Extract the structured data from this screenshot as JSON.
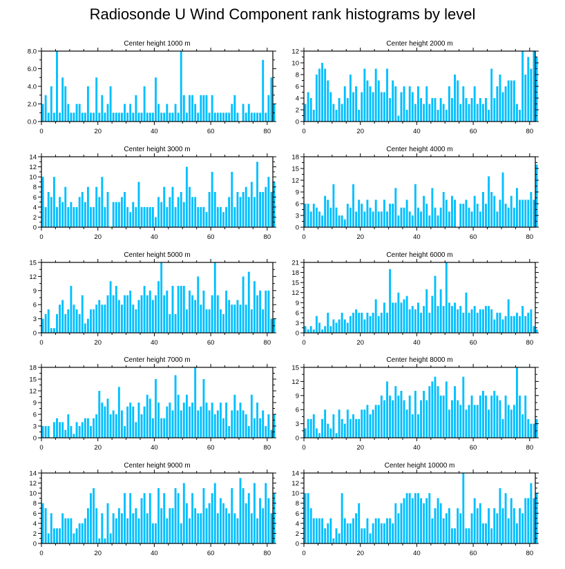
{
  "title": "Radiosonde U Wind Component rank histograms by level",
  "bar_color": "#00BFFF",
  "chart_data": [
    {
      "type": "bar",
      "title": "Center height 1000 m",
      "xlim": [
        0,
        82
      ],
      "ylim": [
        0,
        8
      ],
      "yticks": [
        0,
        2,
        4,
        6,
        8
      ],
      "ytick_labels": [
        "0.0",
        "2.0",
        "4.0",
        "6.0",
        "8.0"
      ],
      "xticks": [
        0,
        20,
        40,
        60,
        80
      ],
      "values": [
        2,
        3,
        1,
        4,
        1,
        8,
        1,
        5,
        4,
        2,
        1,
        1,
        2,
        2,
        1,
        1,
        4,
        1,
        1,
        5,
        1,
        3,
        1,
        2,
        4,
        1,
        1,
        1,
        1,
        2,
        1,
        2,
        1,
        3,
        1,
        1,
        4,
        1,
        1,
        1,
        5,
        2,
        1,
        1,
        2,
        1,
        1,
        2,
        1,
        8,
        3,
        1,
        3,
        3,
        2,
        1,
        3,
        3,
        3,
        1,
        3,
        1,
        1,
        1,
        1,
        1,
        1,
        2,
        3,
        1,
        0,
        2,
        1,
        2,
        1,
        1,
        1,
        1,
        7,
        1,
        3,
        5,
        2
      ]
    },
    {
      "type": "bar",
      "title": "Center height 2000 m",
      "xlim": [
        0,
        82
      ],
      "ylim": [
        0,
        12
      ],
      "yticks": [
        0,
        2,
        4,
        6,
        8,
        10,
        12
      ],
      "ytick_labels": [
        "0",
        "2",
        "4",
        "6",
        "8",
        "10",
        "12"
      ],
      "xticks": [
        0,
        20,
        40,
        60,
        80
      ],
      "values": [
        3,
        5,
        4,
        2,
        8,
        9,
        10,
        9,
        7,
        5,
        3,
        2,
        4,
        3,
        6,
        4,
        8,
        5,
        6,
        2,
        5,
        9,
        7,
        6,
        5,
        9,
        7,
        5,
        5,
        9,
        4,
        7,
        6,
        1,
        5,
        6,
        2,
        6,
        5,
        3,
        6,
        4,
        3,
        6,
        3,
        4,
        4,
        2,
        4,
        3,
        2,
        6,
        4,
        8,
        7,
        3,
        6,
        4,
        3,
        4,
        6,
        3,
        4,
        3,
        4,
        2,
        9,
        4,
        6,
        8,
        5,
        6,
        7,
        7,
        7,
        3,
        2,
        12,
        8,
        11,
        9,
        12,
        11
      ]
    },
    {
      "type": "bar",
      "title": "Center height 3000 m",
      "xlim": [
        0,
        82
      ],
      "ylim": [
        0,
        14
      ],
      "yticks": [
        0,
        2,
        4,
        6,
        8,
        10,
        12,
        14
      ],
      "ytick_labels": [
        "0",
        "2",
        "4",
        "6",
        "8",
        "10",
        "12",
        "14"
      ],
      "xticks": [
        0,
        20,
        40,
        60,
        80
      ],
      "values": [
        10,
        4,
        7,
        6,
        10,
        4,
        6,
        5,
        8,
        4,
        5,
        4,
        4,
        6,
        7,
        5,
        8,
        4,
        4,
        8,
        6,
        10,
        4,
        7,
        0,
        5,
        5,
        5,
        6,
        7,
        4,
        3,
        5,
        4,
        9,
        4,
        4,
        4,
        4,
        4,
        2,
        6,
        5,
        8,
        4,
        6,
        8,
        4,
        6,
        7,
        5,
        12,
        8,
        6,
        6,
        4,
        4,
        4,
        3,
        7,
        11,
        7,
        4,
        4,
        3,
        4,
        6,
        11,
        4,
        7,
        6,
        7,
        8,
        6,
        9,
        6,
        13,
        7,
        7,
        8,
        10,
        7,
        9
      ]
    },
    {
      "type": "bar",
      "title": "Center height 4000 m",
      "xlim": [
        0,
        82
      ],
      "ylim": [
        0,
        18
      ],
      "yticks": [
        0,
        3,
        6,
        9,
        12,
        15,
        18
      ],
      "ytick_labels": [
        "0",
        "3",
        "6",
        "9",
        "12",
        "15",
        "18"
      ],
      "xticks": [
        0,
        20,
        40,
        60,
        80
      ],
      "values": [
        6,
        6,
        4,
        6,
        5,
        4,
        3,
        8,
        7,
        5,
        11,
        5,
        3,
        3,
        2,
        6,
        5,
        11,
        4,
        7,
        6,
        4,
        7,
        5,
        4,
        7,
        4,
        4,
        7,
        4,
        6,
        6,
        10,
        3,
        5,
        5,
        7,
        4,
        3,
        11,
        5,
        4,
        8,
        6,
        3,
        10,
        5,
        3,
        5,
        9,
        7,
        4,
        8,
        7,
        0,
        6,
        6,
        7,
        5,
        4,
        8,
        6,
        4,
        9,
        6,
        13,
        9,
        8,
        4,
        7,
        14,
        6,
        5,
        8,
        5,
        10,
        7,
        7,
        7,
        7,
        9,
        7,
        16
      ]
    },
    {
      "type": "bar",
      "title": "Center height 5000 m",
      "xlim": [
        0,
        82
      ],
      "ylim": [
        0,
        15
      ],
      "yticks": [
        0,
        3,
        6,
        9,
        12,
        15
      ],
      "ytick_labels": [
        "0",
        "3",
        "6",
        "9",
        "12",
        "15"
      ],
      "xticks": [
        0,
        20,
        40,
        60,
        80
      ],
      "values": [
        3,
        4,
        5,
        1,
        1,
        4,
        6,
        7,
        4,
        5,
        10,
        6,
        5,
        4,
        8,
        2,
        3,
        5,
        5,
        6,
        7,
        6,
        6,
        8,
        11,
        8,
        10,
        7,
        6,
        8,
        8,
        9,
        6,
        5,
        7,
        8,
        10,
        8,
        9,
        7,
        8,
        11,
        15,
        8,
        9,
        4,
        10,
        4,
        10,
        10,
        10,
        5,
        9,
        8,
        7,
        12,
        6,
        9,
        5,
        5,
        8,
        15,
        8,
        5,
        4,
        9,
        7,
        6,
        6,
        7,
        6,
        12,
        6,
        13,
        5,
        11,
        8,
        9,
        5,
        9,
        9,
        3,
        3
      ]
    },
    {
      "type": "bar",
      "title": "Center height 6000 m",
      "xlim": [
        0,
        82
      ],
      "ylim": [
        0,
        21
      ],
      "yticks": [
        0,
        3,
        6,
        9,
        12,
        15,
        18,
        21
      ],
      "ytick_labels": [
        "0",
        "3",
        "6",
        "9",
        "12",
        "15",
        "18",
        "21"
      ],
      "xticks": [
        0,
        20,
        40,
        60,
        80
      ],
      "values": [
        2,
        1,
        2,
        1,
        5,
        3,
        1,
        2,
        6,
        2,
        4,
        3,
        4,
        6,
        4,
        3,
        5,
        6,
        7,
        6,
        6,
        4,
        6,
        5,
        6,
        10,
        5,
        6,
        9,
        6,
        19,
        9,
        9,
        12,
        9,
        10,
        11,
        7,
        8,
        7,
        9,
        6,
        8,
        13,
        6,
        11,
        17,
        8,
        13,
        8,
        21,
        9,
        8,
        9,
        7,
        8,
        6,
        12,
        6,
        7,
        8,
        6,
        7,
        7,
        8,
        8,
        7,
        4,
        6,
        6,
        4,
        5,
        10,
        5,
        5,
        6,
        5,
        8,
        5,
        6,
        7,
        2,
        1
      ]
    },
    {
      "type": "bar",
      "title": "Center height 7000 m",
      "xlim": [
        0,
        82
      ],
      "ylim": [
        0,
        18
      ],
      "yticks": [
        0,
        3,
        6,
        9,
        12,
        15,
        18
      ],
      "ytick_labels": [
        "0",
        "3",
        "6",
        "9",
        "12",
        "15",
        "18"
      ],
      "xticks": [
        0,
        20,
        40,
        60,
        80
      ],
      "values": [
        3,
        3,
        3,
        0,
        4,
        5,
        4,
        4,
        2,
        6,
        3,
        1,
        4,
        3,
        4,
        5,
        5,
        3,
        5,
        6,
        12,
        9,
        8,
        10,
        6,
        7,
        6,
        13,
        7,
        3,
        8,
        9,
        8,
        4,
        9,
        6,
        8,
        11,
        10,
        5,
        15,
        9,
        5,
        5,
        8,
        9,
        7,
        16,
        11,
        7,
        9,
        11,
        8,
        9,
        18,
        7,
        8,
        15,
        9,
        7,
        9,
        6,
        7,
        9,
        5,
        9,
        3,
        7,
        11,
        7,
        9,
        7,
        6,
        3,
        11,
        5,
        9,
        5,
        7,
        3,
        6,
        2,
        6
      ]
    },
    {
      "type": "bar",
      "title": "Center height 8000 m",
      "xlim": [
        0,
        82
      ],
      "ylim": [
        0,
        15
      ],
      "yticks": [
        0,
        3,
        6,
        9,
        12,
        15
      ],
      "ytick_labels": [
        "0",
        "3",
        "6",
        "9",
        "12",
        "15"
      ],
      "xticks": [
        0,
        20,
        40,
        60,
        80
      ],
      "values": [
        2,
        4,
        4,
        5,
        2,
        1,
        4,
        6,
        3,
        2,
        5,
        1,
        6,
        4,
        3,
        6,
        4,
        5,
        4,
        4,
        6,
        6,
        7,
        5,
        6,
        7,
        7,
        9,
        8,
        12,
        9,
        8,
        11,
        9,
        10,
        8,
        6,
        9,
        5,
        10,
        5,
        8,
        10,
        8,
        11,
        12,
        13,
        11,
        9,
        9,
        12,
        6,
        8,
        11,
        8,
        7,
        13,
        6,
        7,
        9,
        7,
        7,
        9,
        10,
        9,
        6,
        9,
        10,
        9,
        8,
        4,
        9,
        7,
        6,
        7,
        15,
        9,
        5,
        9,
        4,
        3,
        3,
        4
      ]
    },
    {
      "type": "bar",
      "title": "Center height 9000 m",
      "xlim": [
        0,
        82
      ],
      "ylim": [
        0,
        14
      ],
      "yticks": [
        0,
        2,
        4,
        6,
        8,
        10,
        12,
        14
      ],
      "ytick_labels": [
        "0",
        "2",
        "4",
        "6",
        "8",
        "10",
        "12",
        "14"
      ],
      "xticks": [
        0,
        20,
        40,
        60,
        80
      ],
      "values": [
        8,
        7,
        2,
        6,
        3,
        3,
        3,
        6,
        5,
        5,
        5,
        2,
        3,
        4,
        4,
        5,
        7,
        10,
        11,
        7,
        1,
        6,
        1,
        8,
        2,
        6,
        5,
        7,
        6,
        10,
        5,
        10,
        6,
        7,
        5,
        9,
        10,
        6,
        10,
        4,
        4,
        11,
        7,
        10,
        5,
        7,
        7,
        11,
        10,
        4,
        12,
        8,
        5,
        10,
        7,
        6,
        6,
        11,
        7,
        8,
        10,
        12,
        6,
        9,
        8,
        7,
        6,
        11,
        6,
        5,
        13,
        11,
        8,
        10,
        6,
        12,
        5,
        9,
        7,
        12,
        9,
        6,
        10
      ]
    },
    {
      "type": "bar",
      "title": "Center height 10000 m",
      "xlim": [
        0,
        82
      ],
      "ylim": [
        0,
        14
      ],
      "yticks": [
        0,
        2,
        4,
        6,
        8,
        10,
        12,
        14
      ],
      "ytick_labels": [
        "0",
        "2",
        "4",
        "6",
        "8",
        "10",
        "12",
        "14"
      ],
      "xticks": [
        0,
        20,
        40,
        60,
        80
      ],
      "values": [
        10,
        10,
        7,
        5,
        5,
        5,
        5,
        3,
        4,
        5,
        1,
        3,
        2,
        10,
        5,
        4,
        4,
        5,
        6,
        8,
        3,
        3,
        5,
        2,
        4,
        5,
        5,
        4,
        4,
        5,
        5,
        4,
        8,
        6,
        8,
        9,
        10,
        10,
        9,
        10,
        10,
        9,
        8,
        9,
        10,
        5,
        7,
        9,
        8,
        5,
        6,
        7,
        3,
        3,
        7,
        6,
        14,
        3,
        3,
        6,
        9,
        7,
        8,
        4,
        4,
        7,
        3,
        7,
        6,
        11,
        7,
        10,
        5,
        9,
        7,
        4,
        7,
        6,
        9,
        9,
        12,
        9,
        10
      ]
    }
  ]
}
